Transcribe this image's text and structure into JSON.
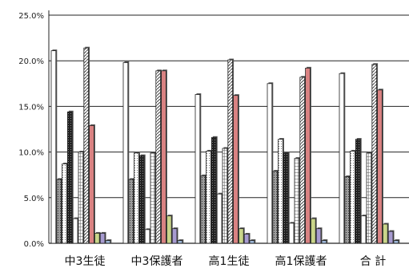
{
  "chart_data": {
    "type": "bar",
    "ylim": [
      0,
      25
    ],
    "yticks": [
      "0.0%",
      "5.0%",
      "10.0%",
      "15.0%",
      "20.0%",
      "25.0%"
    ],
    "grid": true,
    "legend": "none",
    "categories": [
      "中3生徒",
      "中3保護者",
      "高1生徒",
      "高1保護者",
      "合 計"
    ],
    "series": [
      {
        "values": [
          21.1,
          19.8,
          16.3,
          17.5,
          18.6
        ],
        "fill": "#ffffff",
        "pattern": "plain"
      },
      {
        "values": [
          7.0,
          7.0,
          7.4,
          7.9,
          7.3
        ],
        "fill": "#777777",
        "pattern": "dots"
      },
      {
        "values": [
          8.7,
          9.9,
          10.1,
          11.4,
          10.1
        ],
        "fill": "#cfcfcf",
        "pattern": "dots-light"
      },
      {
        "values": [
          14.4,
          9.6,
          11.6,
          9.9,
          11.4
        ],
        "fill": "#333333",
        "pattern": "dark"
      },
      {
        "values": [
          2.7,
          1.5,
          5.4,
          2.2,
          3.0
        ],
        "fill": "#ffffff",
        "pattern": "plain"
      },
      {
        "values": [
          10.0,
          9.9,
          10.4,
          9.3,
          9.9
        ],
        "fill": "#d8d8d8",
        "pattern": "grid"
      },
      {
        "values": [
          21.4,
          18.9,
          20.1,
          18.2,
          19.6
        ],
        "fill": "#bdbdbd",
        "pattern": "diag"
      },
      {
        "values": [
          12.9,
          18.9,
          16.2,
          19.2,
          16.8
        ],
        "fill": "#d98282",
        "pattern": "solid"
      },
      {
        "values": [
          1.1,
          3.0,
          1.6,
          2.7,
          2.1
        ],
        "fill": "#c9d58a",
        "pattern": "solid"
      },
      {
        "values": [
          1.1,
          1.6,
          1.0,
          1.6,
          1.3
        ],
        "fill": "#a79bd0",
        "pattern": "solid"
      },
      {
        "values": [
          0.3,
          0.3,
          0.3,
          0.3,
          0.3
        ],
        "fill": "#9fb8d8",
        "pattern": "solid"
      }
    ]
  }
}
